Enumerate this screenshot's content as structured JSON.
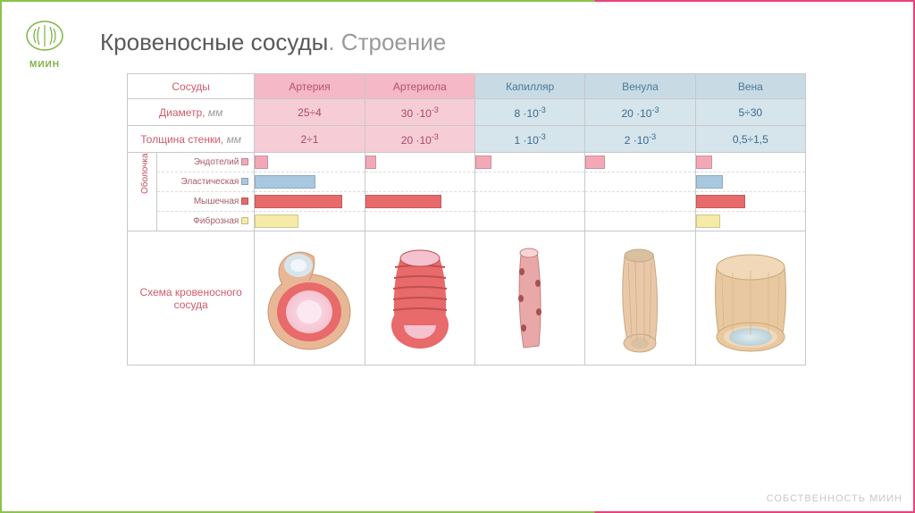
{
  "title_part1": "Кровеносные сосуды",
  "title_dot": ".",
  "title_part2": " Строение",
  "logo_text": "МИИН",
  "watermark": "СОБСТВЕННОСТЬ МИИН",
  "row_headers": {
    "vessels": "Сосуды",
    "diameter": "Диаметр,",
    "diameter_unit": "мм",
    "thickness": "Толщина стенки,",
    "thickness_unit": "мм",
    "membrane": "Оболочка",
    "scheme": "Схема кровеносного сосуда"
  },
  "columns": [
    {
      "name": "Артерия",
      "tone": "pink",
      "hdr_bg": "#f4b8c6",
      "cell_bg": "#f6cdd6"
    },
    {
      "name": "Артериола",
      "tone": "pink",
      "hdr_bg": "#f4b8c6",
      "cell_bg": "#f6cdd6"
    },
    {
      "name": "Капилляр",
      "tone": "blue",
      "hdr_bg": "#c8dae4",
      "cell_bg": "#d6e4ec"
    },
    {
      "name": "Венула",
      "tone": "blue",
      "hdr_bg": "#c8dae4",
      "cell_bg": "#d6e4ec"
    },
    {
      "name": "Вена",
      "tone": "blue",
      "hdr_bg": "#c8dae4",
      "cell_bg": "#d6e4ec"
    }
  ],
  "diameter": [
    "25÷4",
    "30·10⁻³",
    "8·10⁻³",
    "20·10⁻³",
    "5÷30"
  ],
  "thickness": [
    "2÷1",
    "20·10⁻³",
    "1·10⁻³",
    "2·10⁻³",
    "0,5÷1,5"
  ],
  "layers": [
    {
      "name": "Эндотелий",
      "color": "#f3a8b8"
    },
    {
      "name": "Эластическая",
      "color": "#a8c8e0"
    },
    {
      "name": "Мышечная",
      "color": "#e86a6a"
    },
    {
      "name": "Фиброзная",
      "color": "#f5eaa8"
    }
  ],
  "bars_pct": {
    "Артерия": [
      12,
      55,
      80,
      40
    ],
    "Артериола": [
      10,
      0,
      70,
      0
    ],
    "Капилляр": [
      15,
      0,
      0,
      0
    ],
    "Венула": [
      18,
      0,
      0,
      0
    ],
    "Вена": [
      15,
      25,
      45,
      22
    ]
  },
  "colors": {
    "border": "#c8c8c8",
    "label": "#d05a6a",
    "pink_text": "#a84a60",
    "blue_text": "#3a6a8a"
  },
  "col_widths": {
    "label": 120,
    "sublabel": 28,
    "sublabel_text": 92,
    "data": 104
  },
  "vessel_svgs": {
    "artery_outer": "#e8b896",
    "artery_mid": "#e86a6a",
    "artery_inner": "#f5c2d0",
    "artery_lumen": "#f8e4ea",
    "arteriole_outer": "#e86a6a",
    "arteriole_inner": "#f5c2d0",
    "capillary": "#e8a8a8",
    "venule_outer": "#e8c8a8",
    "venule_inner": "#d8c0a0",
    "vein_outer": "#e8c8a0",
    "vein_mid": "#f0d8b8",
    "vein_lumen": "#b8d0d8"
  }
}
